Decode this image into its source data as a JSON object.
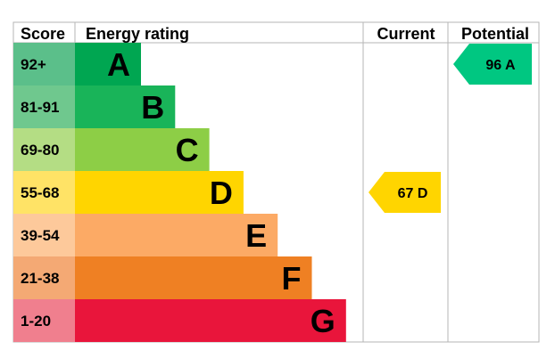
{
  "chart_data": {
    "type": "bar",
    "headers": {
      "score": "Score",
      "rating": "Energy rating",
      "current": "Current",
      "potential": "Potential"
    },
    "bands": [
      {
        "range": "92+",
        "letter": "A",
        "color": "#00a651",
        "score_bg": "#5bbf8a"
      },
      {
        "range": "81-91",
        "letter": "B",
        "color": "#19b459",
        "score_bg": "#6fc88e"
      },
      {
        "range": "69-80",
        "letter": "C",
        "color": "#8dce46",
        "score_bg": "#b4dd84"
      },
      {
        "range": "55-68",
        "letter": "D",
        "color": "#ffd500",
        "score_bg": "#ffe366"
      },
      {
        "range": "39-54",
        "letter": "E",
        "color": "#fcaa65",
        "score_bg": "#fdc99b"
      },
      {
        "range": "21-38",
        "letter": "F",
        "color": "#ef8023",
        "score_bg": "#f4a974"
      },
      {
        "range": "1-20",
        "letter": "G",
        "color": "#e9153b",
        "score_bg": "#f07f8e"
      }
    ],
    "current": {
      "value": 67,
      "letter": "D",
      "label": "67  D",
      "color": "#ffd500"
    },
    "potential": {
      "value": 96,
      "letter": "A",
      "label": "96  A",
      "color": "#00c781"
    }
  }
}
